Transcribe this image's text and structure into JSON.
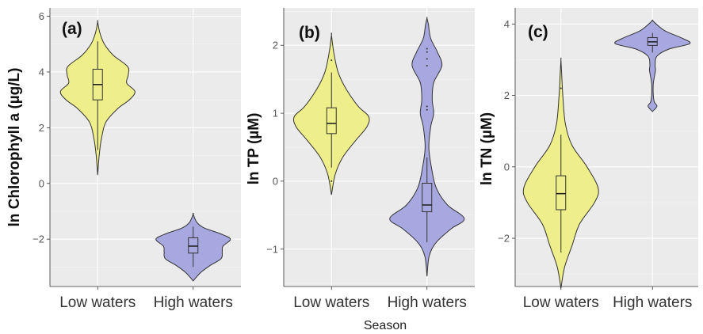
{
  "chart_data": [
    {
      "type": "violin",
      "panel_tag": "(a)",
      "ylabel": "ln Chlorophyll a (µg/L)",
      "ylim": [
        -3.7,
        6.3
      ],
      "yticks": [
        -2,
        0,
        2,
        4,
        6
      ],
      "categories": [
        "Low waters",
        "High waters"
      ],
      "grid": true,
      "colors": [
        "#eeee8a",
        "#a8a8e0"
      ],
      "groups": [
        {
          "category": "Low waters",
          "color": "#eeee8a",
          "median": 3.55,
          "q1": 3.0,
          "q3": 4.1,
          "whisker_low": 1.2,
          "whisker_high": 5.1,
          "outliers": [],
          "density": [
            [
              0.3,
              0.0
            ],
            [
              1.0,
              0.04
            ],
            [
              1.6,
              0.1
            ],
            [
              2.2,
              0.22
            ],
            [
              2.7,
              0.55
            ],
            [
              3.0,
              0.85
            ],
            [
              3.3,
              1.0
            ],
            [
              3.6,
              0.78
            ],
            [
              3.9,
              0.82
            ],
            [
              4.2,
              0.8
            ],
            [
              4.6,
              0.42
            ],
            [
              5.0,
              0.18
            ],
            [
              5.4,
              0.06
            ],
            [
              5.8,
              0.0
            ]
          ]
        },
        {
          "category": "High waters",
          "color": "#a8a8e0",
          "median": -2.25,
          "q1": -2.5,
          "q3": -1.95,
          "whisker_low": -3.0,
          "whisker_high": -1.55,
          "outliers": [],
          "density": [
            [
              -3.5,
              0.0
            ],
            [
              -3.2,
              0.2
            ],
            [
              -2.95,
              0.45
            ],
            [
              -2.7,
              0.75
            ],
            [
              -2.45,
              0.78
            ],
            [
              -2.25,
              0.8
            ],
            [
              -2.0,
              1.0
            ],
            [
              -1.8,
              0.72
            ],
            [
              -1.6,
              0.3
            ],
            [
              -1.4,
              0.1
            ],
            [
              -1.1,
              0.0
            ]
          ]
        }
      ]
    },
    {
      "type": "violin",
      "panel_tag": "(b)",
      "ylabel": "ln TP (µM)",
      "ylim": [
        -1.55,
        2.55
      ],
      "yticks": [
        -1,
        0,
        1,
        2
      ],
      "categories": [
        "Low waters",
        "High waters"
      ],
      "grid": true,
      "colors": [
        "#eeee8a",
        "#a8a8e0"
      ],
      "groups": [
        {
          "category": "Low waters",
          "color": "#eeee8a",
          "median": 0.85,
          "q1": 0.7,
          "q3": 1.08,
          "whisker_low": 0.2,
          "whisker_high": 1.6,
          "outliers": [
            0.0,
            1.78
          ],
          "density": [
            [
              -0.2,
              0.0
            ],
            [
              0.1,
              0.1
            ],
            [
              0.35,
              0.3
            ],
            [
              0.6,
              0.65
            ],
            [
              0.8,
              0.95
            ],
            [
              0.95,
              1.0
            ],
            [
              1.1,
              0.72
            ],
            [
              1.35,
              0.4
            ],
            [
              1.6,
              0.18
            ],
            [
              1.9,
              0.06
            ],
            [
              2.15,
              0.0
            ]
          ]
        },
        {
          "category": "High waters",
          "color": "#a8a8e0",
          "median": -0.35,
          "q1": -0.45,
          "q3": -0.03,
          "whisker_low": -0.9,
          "whisker_high": 0.35,
          "outliers": [
            1.05,
            1.1,
            1.7,
            1.8,
            1.9,
            1.95
          ],
          "density": [
            [
              -1.4,
              0.0
            ],
            [
              -1.1,
              0.06
            ],
            [
              -0.9,
              0.25
            ],
            [
              -0.7,
              0.65
            ],
            [
              -0.55,
              1.0
            ],
            [
              -0.35,
              0.55
            ],
            [
              -0.1,
              0.25
            ],
            [
              0.2,
              0.12
            ],
            [
              0.5,
              0.05
            ],
            [
              0.8,
              0.1
            ],
            [
              1.0,
              0.18
            ],
            [
              1.2,
              0.14
            ],
            [
              1.45,
              0.18
            ],
            [
              1.7,
              0.4
            ],
            [
              1.9,
              0.28
            ],
            [
              2.1,
              0.1
            ],
            [
              2.3,
              0.04
            ],
            [
              2.4,
              0.0
            ]
          ]
        }
      ]
    },
    {
      "type": "violin",
      "panel_tag": "(c)",
      "ylabel": "ln TN (µM)",
      "ylim": [
        -3.35,
        4.45
      ],
      "yticks": [
        -2,
        0,
        2,
        4
      ],
      "categories": [
        "Low waters",
        "High waters"
      ],
      "grid": true,
      "colors": [
        "#eeee8a",
        "#a8a8e0"
      ],
      "groups": [
        {
          "category": "Low waters",
          "color": "#eeee8a",
          "median": -0.75,
          "q1": -1.2,
          "q3": -0.25,
          "whisker_low": -2.4,
          "whisker_high": 0.9,
          "outliers": [
            2.2
          ],
          "density": [
            [
              -3.4,
              0.0
            ],
            [
              -2.8,
              0.1
            ],
            [
              -2.2,
              0.3
            ],
            [
              -1.6,
              0.5
            ],
            [
              -1.0,
              0.9
            ],
            [
              -0.6,
              1.0
            ],
            [
              0.0,
              0.7
            ],
            [
              0.6,
              0.3
            ],
            [
              1.2,
              0.12
            ],
            [
              2.0,
              0.05
            ],
            [
              2.6,
              0.02
            ],
            [
              3.0,
              0.0
            ]
          ]
        },
        {
          "category": "High waters",
          "color": "#a8a8e0",
          "median": 3.5,
          "q1": 3.4,
          "q3": 3.62,
          "whisker_low": 3.2,
          "whisker_high": 3.75,
          "outliers": [],
          "density": [
            [
              1.55,
              0.0
            ],
            [
              1.7,
              0.12
            ],
            [
              1.85,
              0.04
            ],
            [
              2.3,
              0.02
            ],
            [
              2.7,
              0.08
            ],
            [
              2.85,
              0.07
            ],
            [
              3.1,
              0.12
            ],
            [
              3.3,
              0.45
            ],
            [
              3.45,
              1.0
            ],
            [
              3.6,
              0.8
            ],
            [
              3.8,
              0.35
            ],
            [
              4.0,
              0.1
            ],
            [
              4.1,
              0.0
            ]
          ]
        }
      ]
    }
  ],
  "shared": {
    "xlabel": "Season"
  }
}
